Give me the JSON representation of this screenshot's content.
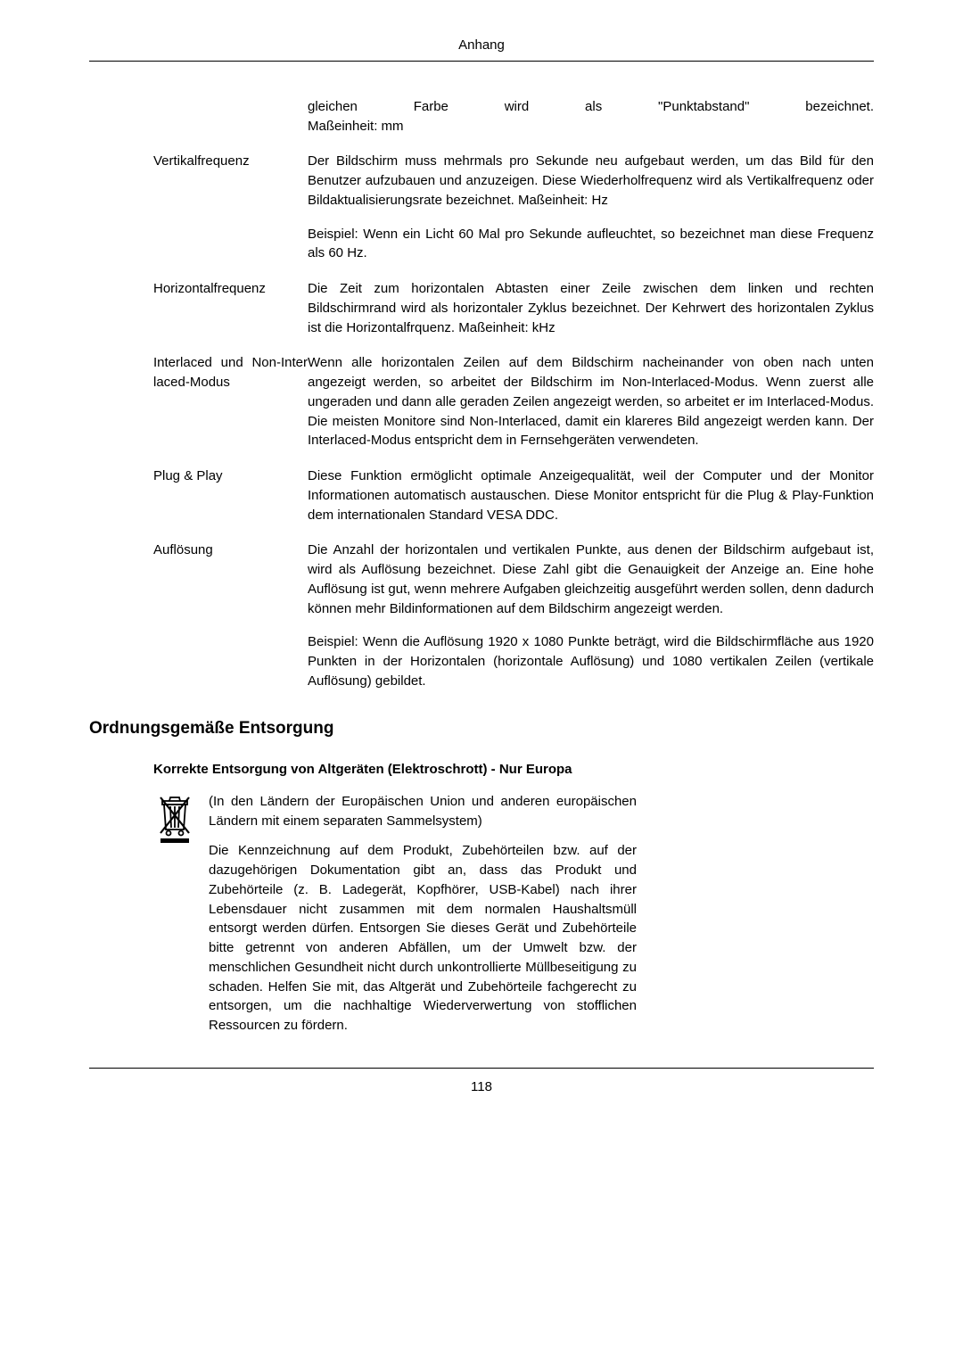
{
  "header": {
    "title": "Anhang"
  },
  "definitions": [
    {
      "term": "",
      "paragraphs": [
        "gleichen Farbe wird als \"Punktabstand\" bezeichnet. Maßeinheit: mm"
      ],
      "first_para_justify_last": true
    },
    {
      "term": "Vertikalfrequenz",
      "paragraphs": [
        "Der Bildschirm muss mehrmals pro Sekunde neu aufgebaut werden, um das Bild für den Benutzer aufzubauen und anzuzeigen. Diese Wiederholfrequenz wird als Vertikalfrequenz oder Bildaktualisierungsrate bezeichnet. Maßeinheit: Hz",
        "Beispiel: Wenn ein Licht 60 Mal pro Sekunde aufleuchtet, so bezeichnet man diese Frequenz als 60 Hz."
      ]
    },
    {
      "term": "Horizontalfrequenz",
      "paragraphs": [
        "Die Zeit zum horizontalen Abtasten einer Zeile zwischen dem linken und rechten Bildschirmrand wird als horizontaler Zyklus bezeichnet. Der Kehrwert des horizontalen Zyklus ist die Horizontalfrquenz. Maßeinheit: kHz"
      ]
    },
    {
      "term": "Interlaced und Non-Interlaced-Modus",
      "term_justify": true,
      "paragraphs": [
        "Wenn alle horizontalen Zeilen auf dem Bildschirm nacheinander von oben nach unten angezeigt werden, so arbeitet der Bildschirm im Non-Interlaced-Modus. Wenn zuerst alle ungeraden und dann alle geraden Zeilen angezeigt werden, so arbeitet er im Interlaced-Modus. Die meisten Monitore sind Non-Interlaced, damit ein klareres Bild angezeigt werden kann. Der Interlaced-Modus entspricht dem in Fernsehgeräten verwendeten."
      ]
    },
    {
      "term": "Plug & Play",
      "paragraphs": [
        "Diese Funktion ermöglicht optimale Anzeigequalität, weil der Computer und der Monitor Informationen automatisch austauschen. Diese Monitor entspricht für die Plug & Play-Funktion dem internationalen Standard VESA DDC."
      ]
    },
    {
      "term": "Auflösung",
      "paragraphs": [
        "Die Anzahl der horizontalen und vertikalen Punkte, aus denen der Bildschirm aufgebaut ist, wird als Auflösung bezeichnet. Diese Zahl gibt die Genauigkeit der Anzeige an. Eine hohe Auflösung ist gut, wenn mehrere Aufgaben gleichzeitig ausgeführt werden sollen, denn dadurch können mehr Bildinformationen auf dem Bildschirm angezeigt werden.",
        "Beispiel: Wenn die Auflösung 1920 x 1080 Punkte beträgt, wird die Bildschirmfläche aus 1920 Punkten in der Horizontalen (horizontale Auflösung) und 1080 vertikalen Zeilen (vertikale Auflösung) gebildet."
      ]
    }
  ],
  "section": {
    "heading": "Ordnungsgemäße Entsorgung",
    "subheading": "Korrekte Entsorgung von Altgeräten (Elektroschrott) - Nur Europa",
    "paragraphs": [
      "(In den Ländern der Europäischen Union und anderen europäischen Ländern mit einem separaten Sammelsystem)",
      "Die Kennzeichnung auf dem Produkt, Zubehörteilen bzw. auf der dazugehörigen Dokumentation gibt an, dass das Produkt und Zubehörteile (z. B. Ladegerät, Kopfhörer, USB-Kabel) nach ihrer Lebensdauer nicht zusammen mit dem normalen Haushaltsmüll entsorgt werden dürfen. Entsorgen Sie dieses Gerät und Zubehörteile bitte getrennt von anderen Abfällen, um der Umwelt bzw. der menschlichen Gesundheit nicht durch unkontrollierte Müllbeseitigung zu schaden. Helfen Sie mit, das Altgerät und Zubehörteile fachgerecht zu entsorgen, um die nachhaltige Wiederverwertung von stofflichen Ressourcen zu fördern."
    ]
  },
  "footer": {
    "page_number": "118"
  }
}
